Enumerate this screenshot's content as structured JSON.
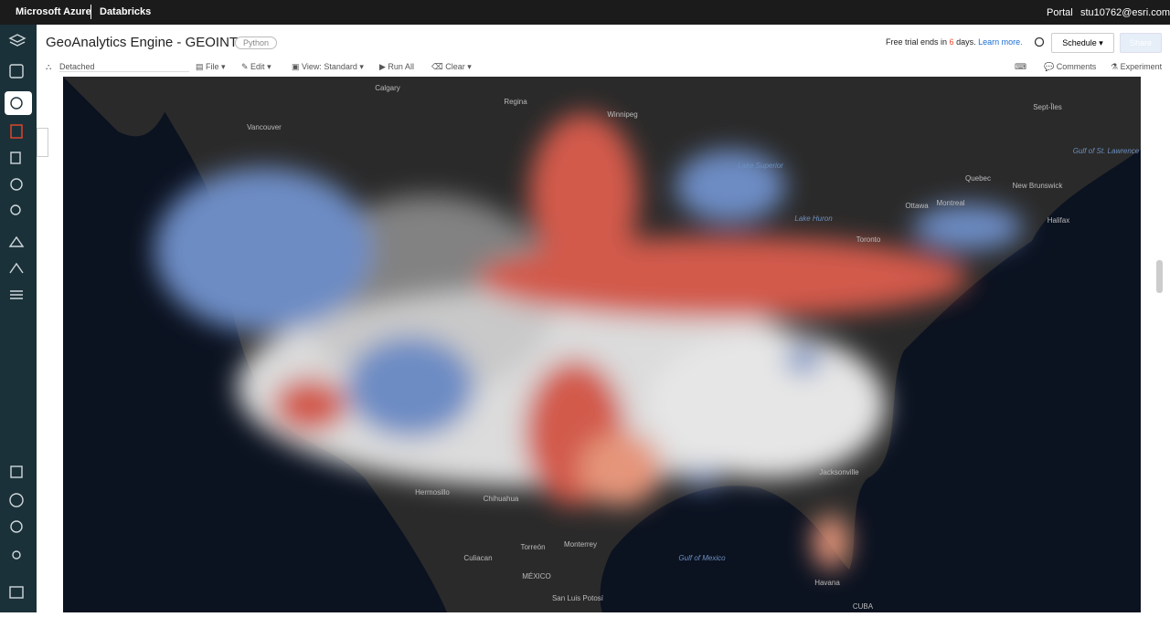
{
  "topbar": {
    "brand": "Microsoft Azure",
    "product": "Databricks",
    "portal": "Portal",
    "user": "stu10762@esri.com"
  },
  "header": {
    "title": "GeoAnalytics Engine - GEOINT",
    "language": "Python",
    "trial_prefix": "Free trial ends in",
    "trial_days": "6",
    "trial_suffix": "days.",
    "learn_more": "Learn more.",
    "schedule": "Schedule",
    "share": "Share"
  },
  "toolbar": {
    "cluster": "Detached",
    "file": "File",
    "edit": "Edit",
    "view": "View: Standard",
    "run_all": "Run All",
    "clear": "Clear",
    "comments": "Comments",
    "experiment": "Experiment"
  },
  "map": {
    "labels": [
      "Calgary",
      "Vancouver",
      "Regina",
      "Winnipeg",
      "Sept-Îles",
      "Gulf of St. Lawrence",
      "Lake Superior",
      "Ottawa",
      "Montreal",
      "Quebec",
      "New Brunswick",
      "Halifax",
      "Lake Huron",
      "Toronto",
      "Hermosillo",
      "Chihuahua",
      "Culiacan",
      "Torreón",
      "Monterrey",
      "MÉXICO",
      "San Luis Potosí",
      "Gulf of Mexico",
      "Jacksonville",
      "Havana",
      "CUBA"
    ]
  }
}
